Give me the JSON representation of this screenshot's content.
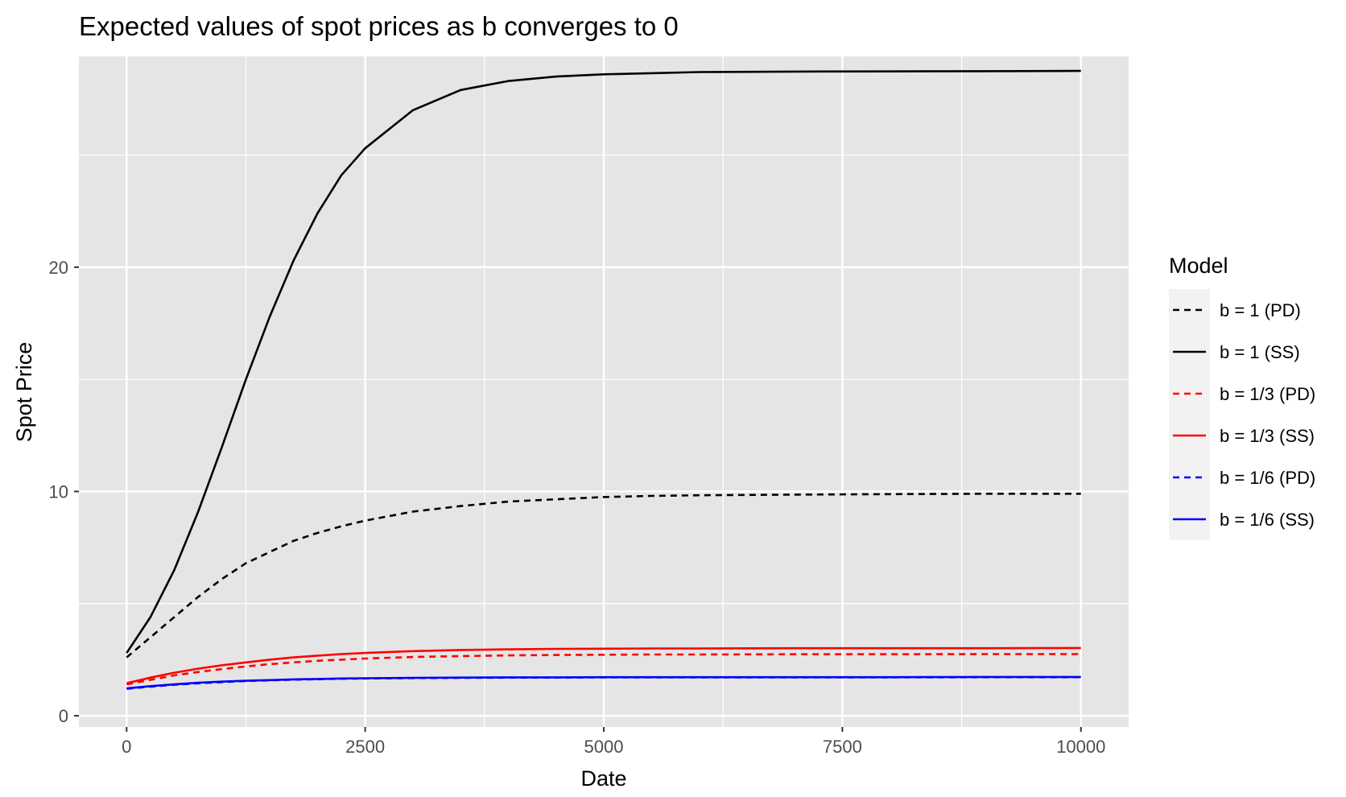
{
  "chart_data": {
    "type": "line",
    "title": "Expected values of spot prices as b converges to 0",
    "xlabel": "Date",
    "ylabel": "Spot Price",
    "xlim": [
      -500,
      10500
    ],
    "ylim": [
      -0.5,
      29.4
    ],
    "x_ticks": [
      0,
      2500,
      5000,
      7500,
      10000
    ],
    "x_tick_labels": [
      "0",
      "2500",
      "5000",
      "7500",
      "10000"
    ],
    "y_ticks": [
      0,
      10,
      20
    ],
    "y_tick_labels": [
      "0",
      "10",
      "20"
    ],
    "grid": true,
    "legend": {
      "title": "Model",
      "position": "right"
    },
    "x": [
      0,
      250,
      500,
      750,
      1000,
      1250,
      1500,
      1750,
      2000,
      2250,
      2500,
      3000,
      3500,
      4000,
      4500,
      5000,
      5500,
      6000,
      7000,
      8000,
      9000,
      10000
    ],
    "series": [
      {
        "name": "b = 1 (PD)",
        "color": "#000000",
        "linetype": "dashed",
        "values": [
          2.6,
          3.5,
          4.4,
          5.3,
          6.1,
          6.8,
          7.3,
          7.8,
          8.15,
          8.45,
          8.7,
          9.1,
          9.35,
          9.55,
          9.65,
          9.75,
          9.8,
          9.83,
          9.86,
          9.88,
          9.9,
          9.9
        ]
      },
      {
        "name": "b = 1 (SS)",
        "color": "#000000",
        "linetype": "solid",
        "values": [
          2.8,
          4.4,
          6.5,
          9.1,
          12.0,
          15.0,
          17.8,
          20.3,
          22.4,
          24.1,
          25.3,
          27.0,
          27.9,
          28.3,
          28.5,
          28.6,
          28.65,
          28.7,
          28.72,
          28.73,
          28.74,
          28.75
        ]
      },
      {
        "name": "b = 1/3 (PD)",
        "color": "#ff0000",
        "linetype": "dashed",
        "values": [
          1.4,
          1.6,
          1.8,
          1.95,
          2.08,
          2.2,
          2.3,
          2.38,
          2.45,
          2.5,
          2.55,
          2.62,
          2.66,
          2.69,
          2.71,
          2.72,
          2.73,
          2.73,
          2.74,
          2.74,
          2.75,
          2.75
        ]
      },
      {
        "name": "b = 1/3 (SS)",
        "color": "#ff0000",
        "linetype": "solid",
        "values": [
          1.45,
          1.7,
          1.92,
          2.1,
          2.25,
          2.38,
          2.5,
          2.6,
          2.68,
          2.75,
          2.8,
          2.88,
          2.93,
          2.96,
          2.98,
          2.99,
          3.0,
          3.0,
          3.01,
          3.01,
          3.01,
          3.02
        ]
      },
      {
        "name": "b = 1/6 (PD)",
        "color": "#0000ff",
        "linetype": "dashed",
        "values": [
          1.2,
          1.3,
          1.38,
          1.45,
          1.5,
          1.55,
          1.58,
          1.61,
          1.63,
          1.65,
          1.66,
          1.68,
          1.69,
          1.7,
          1.7,
          1.71,
          1.71,
          1.71,
          1.71,
          1.71,
          1.72,
          1.72
        ]
      },
      {
        "name": "b = 1/6 (SS)",
        "color": "#0000ff",
        "linetype": "solid",
        "values": [
          1.22,
          1.32,
          1.4,
          1.47,
          1.52,
          1.56,
          1.59,
          1.62,
          1.64,
          1.66,
          1.67,
          1.69,
          1.7,
          1.71,
          1.71,
          1.72,
          1.72,
          1.72,
          1.72,
          1.72,
          1.73,
          1.73
        ]
      }
    ]
  }
}
